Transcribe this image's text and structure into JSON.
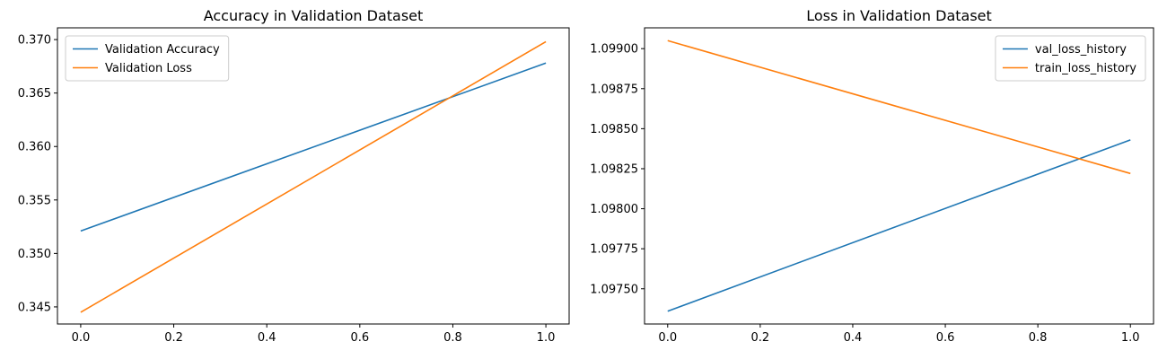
{
  "chart_data": [
    {
      "type": "line",
      "title": "Accuracy in Validation Dataset",
      "xlabel": "",
      "ylabel": "",
      "xlim": [
        -0.05,
        1.05
      ],
      "ylim": [
        0.3434,
        0.3711
      ],
      "xticks": [
        0.0,
        0.2,
        0.4,
        0.6,
        0.8,
        1.0
      ],
      "xtick_labels": [
        "0.0",
        "0.2",
        "0.4",
        "0.6",
        "0.8",
        "1.0"
      ],
      "yticks": [
        0.345,
        0.35,
        0.355,
        0.36,
        0.365,
        0.37
      ],
      "ytick_labels": [
        "0.345",
        "0.350",
        "0.355",
        "0.360",
        "0.365",
        "0.370"
      ],
      "grid": false,
      "legend_position": "top-left",
      "series": [
        {
          "name": "Validation Accuracy",
          "color": "#1f77b4",
          "x": [
            0,
            1
          ],
          "y": [
            0.3521,
            0.3678
          ]
        },
        {
          "name": "Validation Loss",
          "color": "#ff7f0e",
          "x": [
            0,
            1
          ],
          "y": [
            0.3445,
            0.3698
          ]
        }
      ]
    },
    {
      "type": "line",
      "title": "Loss in Validation Dataset",
      "xlabel": "",
      "ylabel": "",
      "xlim": [
        -0.05,
        1.05
      ],
      "ylim": [
        1.09728,
        1.09913
      ],
      "xticks": [
        0.0,
        0.2,
        0.4,
        0.6,
        0.8,
        1.0
      ],
      "xtick_labels": [
        "0.0",
        "0.2",
        "0.4",
        "0.6",
        "0.8",
        "1.0"
      ],
      "yticks": [
        1.0975,
        1.09775,
        1.098,
        1.09825,
        1.0985,
        1.09875,
        1.099
      ],
      "ytick_labels": [
        "1.09750",
        "1.09775",
        "1.09800",
        "1.09825",
        "1.09850",
        "1.09875",
        "1.09900"
      ],
      "grid": false,
      "legend_position": "top-right",
      "series": [
        {
          "name": "val_loss_history",
          "color": "#1f77b4",
          "x": [
            0,
            1
          ],
          "y": [
            1.09736,
            1.09843
          ]
        },
        {
          "name": "train_loss_history",
          "color": "#ff7f0e",
          "x": [
            0,
            1
          ],
          "y": [
            1.09905,
            1.09822
          ]
        }
      ]
    }
  ]
}
